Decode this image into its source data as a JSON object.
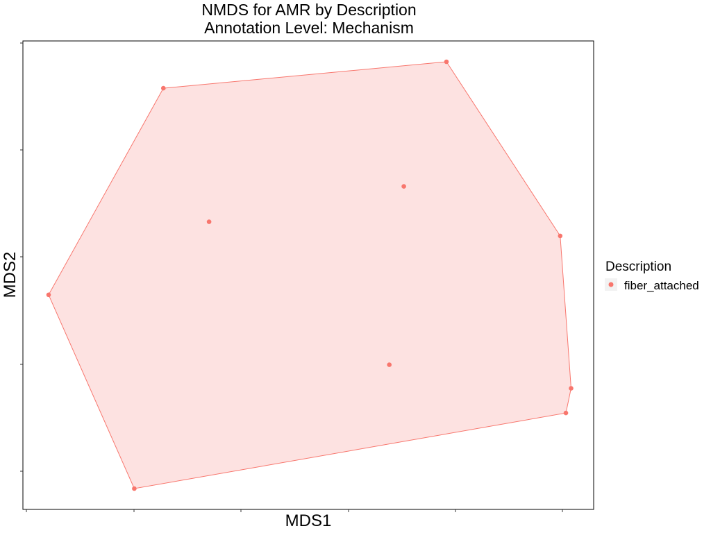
{
  "chart_data": {
    "type": "scatter",
    "title": "NMDS for AMR by Description",
    "subtitle": "Annotation Level: Mechanism",
    "xlabel": "MDS1",
    "ylabel": "MDS2",
    "xlim": [
      -0.05,
      1.05
    ],
    "ylim": [
      -0.05,
      1.05
    ],
    "grid": false,
    "legend": {
      "title": "Description",
      "position": "right",
      "entries": [
        "fiber_attached"
      ]
    },
    "color": "#F8766D",
    "hull_fill": "#FDE2E1",
    "series": [
      {
        "name": "fiber_attached",
        "points": [
          {
            "x": 0.0,
            "y": 0.454
          },
          {
            "x": 0.165,
            "y": 0.0
          },
          {
            "x": 0.221,
            "y": 0.938
          },
          {
            "x": 0.309,
            "y": 0.625
          },
          {
            "x": 0.656,
            "y": 0.29
          },
          {
            "x": 0.684,
            "y": 0.708
          },
          {
            "x": 0.766,
            "y": 1.0
          },
          {
            "x": 0.985,
            "y": 0.592
          },
          {
            "x": 0.996,
            "y": 0.177
          },
          {
            "x": 1.006,
            "y": 0.235
          }
        ],
        "hull": [
          {
            "x": 0.0,
            "y": 0.454
          },
          {
            "x": 0.221,
            "y": 0.938
          },
          {
            "x": 0.766,
            "y": 1.0
          },
          {
            "x": 0.985,
            "y": 0.592
          },
          {
            "x": 1.006,
            "y": 0.235
          },
          {
            "x": 0.996,
            "y": 0.177
          },
          {
            "x": 0.165,
            "y": 0.0
          }
        ]
      }
    ]
  }
}
